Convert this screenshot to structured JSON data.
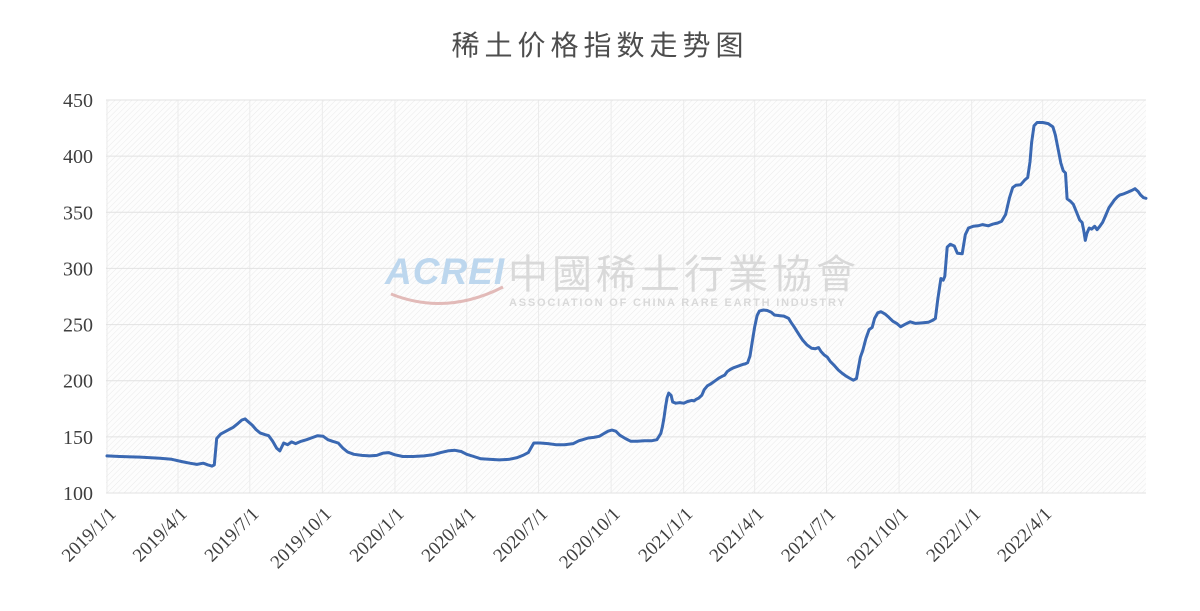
{
  "title": "稀土价格指数走势图",
  "watermark": {
    "logo_text": "ACREI",
    "cn_text": "中國稀土行業協會",
    "en_text": "ASSOCIATION OF CHINA RARE EARTH INDUSTRY"
  },
  "colors": {
    "line": "#3a68b2",
    "title_text": "#4d4d4d",
    "axis_label": "#3f3f3f",
    "grid_horizontal": "#e2e2e2",
    "grid_vertical": "#ececec",
    "hatch_stripe": "#eaeaea",
    "hatch_bg": "#fdfdfd",
    "watermark_blue": "#bdd7ee",
    "watermark_red": "#d9a4a1",
    "watermark_gray": "#d9d9d9"
  },
  "chart_data": {
    "type": "line",
    "title": "稀土价格指数走势图",
    "series_name": "稀土价格指数",
    "legend": false,
    "grid": true,
    "ylim": [
      100,
      450
    ],
    "y_ticks": [
      100,
      150,
      200,
      250,
      300,
      350,
      400,
      450
    ],
    "x_range": [
      "2019-01-01",
      "2022-08-10"
    ],
    "x_ticks": [
      {
        "date": "2019-01-01",
        "label": "2019/1/1"
      },
      {
        "date": "2019-04-01",
        "label": "2019/4/1"
      },
      {
        "date": "2019-07-01",
        "label": "2019/7/1"
      },
      {
        "date": "2019-10-01",
        "label": "2019/10/1"
      },
      {
        "date": "2020-01-01",
        "label": "2020/1/1"
      },
      {
        "date": "2020-04-01",
        "label": "2020/4/1"
      },
      {
        "date": "2020-07-01",
        "label": "2020/7/1"
      },
      {
        "date": "2020-10-01",
        "label": "2020/10/1"
      },
      {
        "date": "2021-01-01",
        "label": "2021/1/1"
      },
      {
        "date": "2021-04-01",
        "label": "2021/4/1"
      },
      {
        "date": "2021-07-01",
        "label": "2021/7/1"
      },
      {
        "date": "2021-10-01",
        "label": "2021/10/1"
      },
      {
        "date": "2022-01-01",
        "label": "2022/1/1"
      },
      {
        "date": "2022-04-01",
        "label": "2022/4/1"
      }
    ],
    "points": [
      [
        "2019-01-01",
        133
      ],
      [
        "2019-01-17",
        132.5
      ],
      [
        "2019-02-12",
        132
      ],
      [
        "2019-03-09",
        131
      ],
      [
        "2019-03-24",
        130
      ],
      [
        "2019-04-06",
        128
      ],
      [
        "2019-04-16",
        126.5
      ],
      [
        "2019-04-25",
        125.5
      ],
      [
        "2019-05-03",
        126.5
      ],
      [
        "2019-05-09",
        125
      ],
      [
        "2019-05-14",
        124
      ],
      [
        "2019-05-17",
        125
      ],
      [
        "2019-05-20",
        148.5
      ],
      [
        "2019-05-25",
        152.5
      ],
      [
        "2019-06-02",
        155.5
      ],
      [
        "2019-06-10",
        158.5
      ],
      [
        "2019-06-16",
        162
      ],
      [
        "2019-06-21",
        165
      ],
      [
        "2019-06-25",
        166
      ],
      [
        "2019-06-29",
        163.5
      ],
      [
        "2019-07-04",
        160.5
      ],
      [
        "2019-07-09",
        156.5
      ],
      [
        "2019-07-14",
        153.5
      ],
      [
        "2019-07-20",
        152
      ],
      [
        "2019-07-25",
        151
      ],
      [
        "2019-07-30",
        146
      ],
      [
        "2019-08-04",
        140
      ],
      [
        "2019-08-08",
        137.5
      ],
      [
        "2019-08-13",
        144.5
      ],
      [
        "2019-08-18",
        143
      ],
      [
        "2019-08-23",
        145.5
      ],
      [
        "2019-08-28",
        144
      ],
      [
        "2019-09-04",
        146
      ],
      [
        "2019-09-11",
        147.5
      ],
      [
        "2019-09-19",
        149.5
      ],
      [
        "2019-09-25",
        151
      ],
      [
        "2019-10-02",
        150.5
      ],
      [
        "2019-10-08",
        147.5
      ],
      [
        "2019-10-14",
        146
      ],
      [
        "2019-10-21",
        144.5
      ],
      [
        "2019-10-27",
        140
      ],
      [
        "2019-11-02",
        136.5
      ],
      [
        "2019-11-10",
        134.5
      ],
      [
        "2019-11-20",
        133.5
      ],
      [
        "2019-11-30",
        133
      ],
      [
        "2019-12-09",
        133.5
      ],
      [
        "2019-12-17",
        135.5
      ],
      [
        "2019-12-24",
        136
      ],
      [
        "2020-01-01",
        134
      ],
      [
        "2020-01-11",
        132.5
      ],
      [
        "2020-01-24",
        132.5
      ],
      [
        "2020-02-07",
        133
      ],
      [
        "2020-02-18",
        134
      ],
      [
        "2020-02-28",
        136
      ],
      [
        "2020-03-08",
        137.5
      ],
      [
        "2020-03-17",
        138
      ],
      [
        "2020-03-25",
        137
      ],
      [
        "2020-04-01",
        134.5
      ],
      [
        "2020-04-10",
        132.5
      ],
      [
        "2020-04-19",
        130.5
      ],
      [
        "2020-04-29",
        130
      ],
      [
        "2020-05-12",
        129.5
      ],
      [
        "2020-05-25",
        130
      ],
      [
        "2020-06-04",
        131.5
      ],
      [
        "2020-06-11",
        133.5
      ],
      [
        "2020-06-18",
        136
      ],
      [
        "2020-06-21",
        139.5
      ],
      [
        "2020-06-25",
        144.5
      ],
      [
        "2020-07-03",
        144.5
      ],
      [
        "2020-07-13",
        144
      ],
      [
        "2020-07-23",
        143
      ],
      [
        "2020-08-03",
        143
      ],
      [
        "2020-08-14",
        144
      ],
      [
        "2020-08-21",
        146.5
      ],
      [
        "2020-08-26",
        147.5
      ],
      [
        "2020-09-02",
        149
      ],
      [
        "2020-09-09",
        149.5
      ],
      [
        "2020-09-16",
        150.5
      ],
      [
        "2020-09-22",
        153
      ],
      [
        "2020-09-27",
        155
      ],
      [
        "2020-10-02",
        156
      ],
      [
        "2020-10-07",
        155
      ],
      [
        "2020-10-12",
        151.5
      ],
      [
        "2020-10-19",
        148.5
      ],
      [
        "2020-10-26",
        146
      ],
      [
        "2020-11-03",
        146
      ],
      [
        "2020-11-12",
        146.5
      ],
      [
        "2020-11-21",
        146.5
      ],
      [
        "2020-11-28",
        147.5
      ],
      [
        "2020-12-03",
        153
      ],
      [
        "2020-12-05",
        159
      ],
      [
        "2020-12-07",
        167
      ],
      [
        "2020-12-09",
        177
      ],
      [
        "2020-12-11",
        185
      ],
      [
        "2020-12-13",
        189
      ],
      [
        "2020-12-16",
        187
      ],
      [
        "2020-12-18",
        181
      ],
      [
        "2020-12-22",
        180
      ],
      [
        "2020-12-27",
        180.5
      ],
      [
        "2021-01-01",
        180
      ],
      [
        "2021-01-06",
        181.5
      ],
      [
        "2021-01-11",
        182.5
      ],
      [
        "2021-01-14",
        182
      ],
      [
        "2021-01-17",
        183.5
      ],
      [
        "2021-01-20",
        184.5
      ],
      [
        "2021-01-24",
        187
      ],
      [
        "2021-01-27",
        192
      ],
      [
        "2021-01-31",
        195.5
      ],
      [
        "2021-02-04",
        197
      ],
      [
        "2021-02-08",
        199
      ],
      [
        "2021-02-11",
        200.5
      ],
      [
        "2021-02-15",
        202.5
      ],
      [
        "2021-02-19",
        204
      ],
      [
        "2021-02-22",
        205
      ],
      [
        "2021-02-25",
        208
      ],
      [
        "2021-03-01",
        210
      ],
      [
        "2021-03-05",
        211.5
      ],
      [
        "2021-03-09",
        212.5
      ],
      [
        "2021-03-13",
        213.5
      ],
      [
        "2021-03-17",
        214.5
      ],
      [
        "2021-03-20",
        215
      ],
      [
        "2021-03-23",
        216
      ],
      [
        "2021-03-26",
        222
      ],
      [
        "2021-03-29",
        235
      ],
      [
        "2021-04-01",
        248
      ],
      [
        "2021-04-04",
        258
      ],
      [
        "2021-04-07",
        262
      ],
      [
        "2021-04-12",
        263
      ],
      [
        "2021-04-17",
        262.5
      ],
      [
        "2021-04-22",
        261
      ],
      [
        "2021-04-26",
        258.5
      ],
      [
        "2021-05-02",
        258
      ],
      [
        "2021-05-08",
        257.5
      ],
      [
        "2021-05-14",
        255.5
      ],
      [
        "2021-05-17",
        252
      ],
      [
        "2021-05-21",
        248
      ],
      [
        "2021-05-25",
        243.5
      ],
      [
        "2021-05-29",
        239
      ],
      [
        "2021-06-01",
        236
      ],
      [
        "2021-06-06",
        232
      ],
      [
        "2021-06-12",
        229
      ],
      [
        "2021-06-17",
        228.5
      ],
      [
        "2021-06-21",
        229.5
      ],
      [
        "2021-06-24",
        226
      ],
      [
        "2021-06-28",
        223
      ],
      [
        "2021-07-02",
        221
      ],
      [
        "2021-07-06",
        217
      ],
      [
        "2021-07-11",
        213.5
      ],
      [
        "2021-07-16",
        209.5
      ],
      [
        "2021-07-21",
        206.5
      ],
      [
        "2021-07-26",
        204
      ],
      [
        "2021-07-31",
        202
      ],
      [
        "2021-08-04",
        200.5
      ],
      [
        "2021-08-08",
        202
      ],
      [
        "2021-08-10",
        209.5
      ],
      [
        "2021-08-13",
        221
      ],
      [
        "2021-08-16",
        227
      ],
      [
        "2021-08-20",
        237.5
      ],
      [
        "2021-08-24",
        245.5
      ],
      [
        "2021-08-28",
        247.5
      ],
      [
        "2021-08-31",
        255.5
      ],
      [
        "2021-09-04",
        260.5
      ],
      [
        "2021-09-08",
        261.5
      ],
      [
        "2021-09-13",
        259.5
      ],
      [
        "2021-09-18",
        256.5
      ],
      [
        "2021-09-23",
        253
      ],
      [
        "2021-09-28",
        251
      ],
      [
        "2021-10-03",
        248
      ],
      [
        "2021-10-08",
        250
      ],
      [
        "2021-10-15",
        252.5
      ],
      [
        "2021-10-22",
        251
      ],
      [
        "2021-10-30",
        251.5
      ],
      [
        "2021-11-07",
        252
      ],
      [
        "2021-11-13",
        254
      ],
      [
        "2021-11-16",
        255.5
      ],
      [
        "2021-11-19",
        272
      ],
      [
        "2021-11-23",
        291
      ],
      [
        "2021-11-26",
        289.5
      ],
      [
        "2021-11-28",
        293
      ],
      [
        "2021-12-01",
        319
      ],
      [
        "2021-12-05",
        321.5
      ],
      [
        "2021-12-10",
        320
      ],
      [
        "2021-12-14",
        313.5
      ],
      [
        "2021-12-20",
        313
      ],
      [
        "2021-12-24",
        330
      ],
      [
        "2021-12-28",
        336
      ],
      [
        "2022-01-03",
        337.5
      ],
      [
        "2022-01-09",
        338
      ],
      [
        "2022-01-15",
        339
      ],
      [
        "2022-01-22",
        338
      ],
      [
        "2022-01-28",
        339.5
      ],
      [
        "2022-02-03",
        340.5
      ],
      [
        "2022-02-08",
        342
      ],
      [
        "2022-02-13",
        348
      ],
      [
        "2022-02-18",
        363
      ],
      [
        "2022-02-22",
        372
      ],
      [
        "2022-02-26",
        374
      ],
      [
        "2022-03-04",
        374.5
      ],
      [
        "2022-03-09",
        378.5
      ],
      [
        "2022-03-13",
        381
      ],
      [
        "2022-03-16",
        395
      ],
      [
        "2022-03-18",
        412
      ],
      [
        "2022-03-21",
        427
      ],
      [
        "2022-03-25",
        430
      ],
      [
        "2022-04-01",
        430
      ],
      [
        "2022-04-08",
        429
      ],
      [
        "2022-04-14",
        426
      ],
      [
        "2022-04-17",
        419
      ],
      [
        "2022-04-21",
        405
      ],
      [
        "2022-04-24",
        394
      ],
      [
        "2022-04-27",
        387
      ],
      [
        "2022-04-30",
        385
      ],
      [
        "2022-05-02",
        362
      ],
      [
        "2022-05-06",
        360
      ],
      [
        "2022-05-10",
        357
      ],
      [
        "2022-05-14",
        350
      ],
      [
        "2022-05-18",
        343
      ],
      [
        "2022-05-21",
        341
      ],
      [
        "2022-05-23",
        334
      ],
      [
        "2022-05-25",
        325
      ],
      [
        "2022-05-27",
        331
      ],
      [
        "2022-05-30",
        336
      ],
      [
        "2022-06-02",
        335
      ],
      [
        "2022-06-06",
        337.5
      ],
      [
        "2022-06-09",
        334.5
      ],
      [
        "2022-06-13",
        338
      ],
      [
        "2022-06-16",
        341
      ],
      [
        "2022-06-20",
        347.5
      ],
      [
        "2022-06-24",
        354
      ],
      [
        "2022-06-28",
        358
      ],
      [
        "2022-07-01",
        361
      ],
      [
        "2022-07-05",
        364
      ],
      [
        "2022-07-08",
        365.5
      ],
      [
        "2022-07-13",
        366.5
      ],
      [
        "2022-07-18",
        368
      ],
      [
        "2022-07-23",
        369.5
      ],
      [
        "2022-07-27",
        371
      ],
      [
        "2022-07-31",
        368.5
      ],
      [
        "2022-08-03",
        365.5
      ],
      [
        "2022-08-07",
        363
      ],
      [
        "2022-08-10",
        362.5
      ]
    ]
  }
}
